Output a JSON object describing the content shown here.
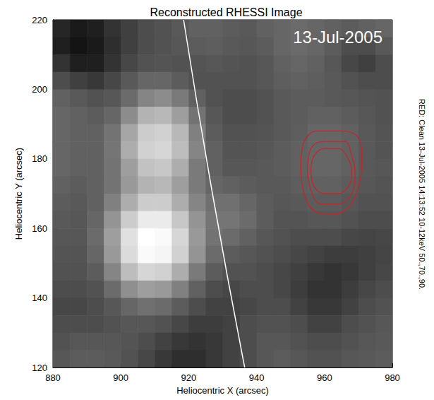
{
  "chart_data": {
    "type": "image",
    "title": "Reconstructed RHESSI Image",
    "annotation": "13-Jul-2005",
    "side_text": "RED: Clean 13-Jul-2005 14:13:52 10-12keV 50.,70.,90.",
    "x_label": "Heliocentric X (arcsec)",
    "y_label": "Heliocentric Y (arcsec)",
    "xlim": [
      880,
      980
    ],
    "ylim": [
      120,
      220
    ],
    "xticks": [
      880,
      900,
      920,
      940,
      960,
      980
    ],
    "yticks": [
      120,
      140,
      160,
      180,
      200,
      220
    ],
    "x": [
      882.5,
      887.5,
      892.5,
      897.5,
      902.5,
      907.5,
      912.5,
      917.5,
      922.5,
      927.5,
      932.5,
      937.5,
      942.5,
      947.5,
      952.5,
      957.5,
      962.5,
      967.5,
      972.5,
      977.5
    ],
    "y": [
      217.5,
      212.5,
      207.5,
      202.5,
      197.5,
      192.5,
      187.5,
      182.5,
      177.5,
      172.5,
      167.5,
      162.5,
      157.5,
      152.5,
      147.5,
      142.5,
      137.5,
      132.5,
      127.5,
      122.5
    ],
    "z": [
      [
        0.15,
        0.1,
        0.12,
        0.2,
        0.25,
        0.3,
        0.32,
        0.35,
        0.38,
        0.38,
        0.36,
        0.35,
        0.38,
        0.4,
        0.42,
        0.4,
        0.38,
        0.36,
        0.38,
        0.4
      ],
      [
        0.12,
        0.08,
        0.1,
        0.18,
        0.25,
        0.3,
        0.32,
        0.34,
        0.36,
        0.37,
        0.35,
        0.34,
        0.36,
        0.4,
        0.42,
        0.4,
        0.36,
        0.3,
        0.3,
        0.35
      ],
      [
        0.2,
        0.12,
        0.12,
        0.2,
        0.28,
        0.32,
        0.33,
        0.32,
        0.33,
        0.34,
        0.33,
        0.32,
        0.34,
        0.38,
        0.4,
        0.38,
        0.34,
        0.28,
        0.25,
        0.3
      ],
      [
        0.3,
        0.25,
        0.22,
        0.28,
        0.35,
        0.4,
        0.4,
        0.36,
        0.32,
        0.32,
        0.32,
        0.32,
        0.34,
        0.37,
        0.38,
        0.37,
        0.35,
        0.32,
        0.3,
        0.3
      ],
      [
        0.38,
        0.35,
        0.32,
        0.34,
        0.42,
        0.52,
        0.55,
        0.48,
        0.38,
        0.32,
        0.3,
        0.3,
        0.32,
        0.35,
        0.36,
        0.36,
        0.35,
        0.34,
        0.33,
        0.32
      ],
      [
        0.4,
        0.38,
        0.36,
        0.4,
        0.55,
        0.7,
        0.72,
        0.62,
        0.45,
        0.34,
        0.3,
        0.3,
        0.32,
        0.35,
        0.36,
        0.38,
        0.38,
        0.36,
        0.34,
        0.32
      ],
      [
        0.4,
        0.38,
        0.38,
        0.45,
        0.65,
        0.8,
        0.82,
        0.72,
        0.5,
        0.36,
        0.32,
        0.32,
        0.33,
        0.35,
        0.37,
        0.4,
        0.4,
        0.38,
        0.35,
        0.33
      ],
      [
        0.4,
        0.38,
        0.38,
        0.46,
        0.68,
        0.82,
        0.84,
        0.74,
        0.52,
        0.38,
        0.33,
        0.33,
        0.34,
        0.36,
        0.38,
        0.4,
        0.4,
        0.38,
        0.35,
        0.33
      ],
      [
        0.4,
        0.38,
        0.38,
        0.45,
        0.62,
        0.76,
        0.78,
        0.68,
        0.48,
        0.38,
        0.34,
        0.34,
        0.35,
        0.36,
        0.38,
        0.4,
        0.4,
        0.38,
        0.35,
        0.34
      ],
      [
        0.38,
        0.36,
        0.38,
        0.45,
        0.6,
        0.7,
        0.72,
        0.62,
        0.48,
        0.4,
        0.38,
        0.36,
        0.35,
        0.35,
        0.37,
        0.38,
        0.38,
        0.36,
        0.34,
        0.33
      ],
      [
        0.36,
        0.35,
        0.38,
        0.5,
        0.68,
        0.8,
        0.8,
        0.68,
        0.52,
        0.44,
        0.44,
        0.4,
        0.36,
        0.34,
        0.35,
        0.36,
        0.36,
        0.34,
        0.32,
        0.32
      ],
      [
        0.35,
        0.34,
        0.4,
        0.58,
        0.8,
        0.92,
        0.92,
        0.78,
        0.58,
        0.46,
        0.46,
        0.42,
        0.36,
        0.33,
        0.33,
        0.34,
        0.34,
        0.32,
        0.3,
        0.3
      ],
      [
        0.34,
        0.34,
        0.42,
        0.62,
        0.88,
        1.0,
        0.98,
        0.84,
        0.6,
        0.45,
        0.42,
        0.38,
        0.34,
        0.32,
        0.3,
        0.3,
        0.3,
        0.28,
        0.27,
        0.28
      ],
      [
        0.33,
        0.33,
        0.4,
        0.6,
        0.86,
        0.98,
        0.96,
        0.82,
        0.58,
        0.42,
        0.36,
        0.34,
        0.32,
        0.3,
        0.28,
        0.26,
        0.24,
        0.24,
        0.25,
        0.27
      ],
      [
        0.32,
        0.32,
        0.36,
        0.52,
        0.74,
        0.84,
        0.82,
        0.68,
        0.48,
        0.36,
        0.32,
        0.32,
        0.3,
        0.28,
        0.25,
        0.22,
        0.2,
        0.22,
        0.25,
        0.28
      ],
      [
        0.3,
        0.3,
        0.32,
        0.42,
        0.56,
        0.62,
        0.6,
        0.5,
        0.38,
        0.3,
        0.28,
        0.3,
        0.3,
        0.28,
        0.24,
        0.2,
        0.2,
        0.24,
        0.28,
        0.3
      ],
      [
        0.28,
        0.28,
        0.3,
        0.34,
        0.4,
        0.44,
        0.42,
        0.36,
        0.3,
        0.26,
        0.26,
        0.28,
        0.3,
        0.3,
        0.26,
        0.22,
        0.22,
        0.26,
        0.3,
        0.32
      ],
      [
        0.3,
        0.3,
        0.3,
        0.32,
        0.34,
        0.34,
        0.32,
        0.28,
        0.24,
        0.24,
        0.26,
        0.3,
        0.32,
        0.32,
        0.3,
        0.26,
        0.26,
        0.3,
        0.32,
        0.34
      ],
      [
        0.32,
        0.34,
        0.34,
        0.34,
        0.33,
        0.3,
        0.26,
        0.22,
        0.2,
        0.22,
        0.26,
        0.3,
        0.34,
        0.34,
        0.32,
        0.3,
        0.3,
        0.32,
        0.34,
        0.35
      ],
      [
        0.34,
        0.36,
        0.36,
        0.35,
        0.32,
        0.28,
        0.22,
        0.18,
        0.18,
        0.22,
        0.26,
        0.3,
        0.34,
        0.36,
        0.34,
        0.32,
        0.32,
        0.34,
        0.35,
        0.36
      ]
    ],
    "color_range": [
      0,
      1
    ],
    "contours": [
      {
        "color": "#c0282d",
        "x": [
          953,
          954,
          958,
          965,
          970,
          971,
          970,
          967,
          962,
          957,
          954,
          953
        ],
        "y": [
          178,
          185,
          188,
          188,
          186,
          180,
          172,
          166,
          164,
          165,
          170,
          178
        ]
      },
      {
        "color": "#c0282d",
        "x": [
          955,
          956,
          960,
          966,
          968,
          969,
          968,
          964,
          959,
          956,
          955
        ],
        "y": [
          177,
          183,
          185,
          185,
          181,
          176,
          170,
          167,
          167,
          171,
          177
        ]
      },
      {
        "color": "#c0282d",
        "x": [
          956,
          957,
          960,
          964,
          967,
          968,
          967,
          964,
          960,
          957,
          956
        ],
        "y": [
          177,
          181,
          183,
          183,
          180,
          176,
          172,
          170,
          170,
          172,
          177
        ]
      }
    ],
    "limb": {
      "color": "#ffffff",
      "x": [
        918.5,
        927,
        936.5
      ],
      "y": [
        220,
        170,
        120
      ]
    }
  }
}
